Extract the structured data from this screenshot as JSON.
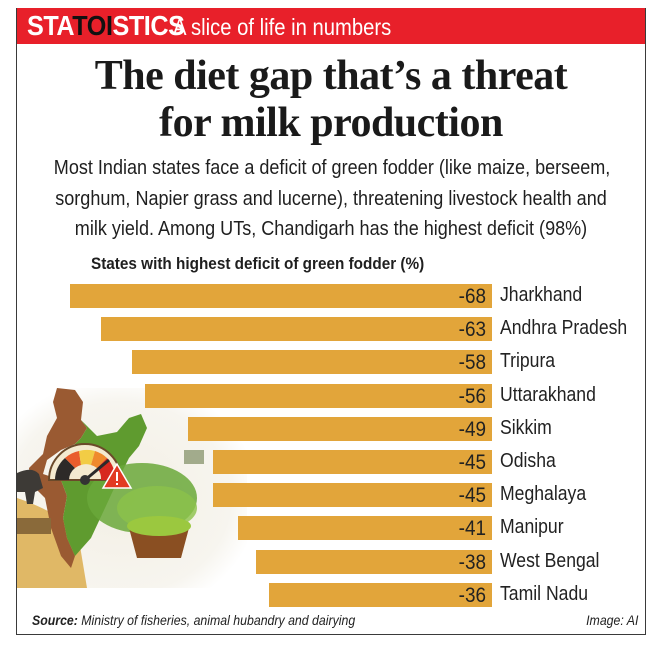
{
  "banner": {
    "brand_pre": "STA",
    "brand_toi": "TOI",
    "brand_post": "STICS",
    "tagline": "A slice of life in numbers"
  },
  "headline": {
    "line1": "The diet gap that’s a threat",
    "line2": "for milk production"
  },
  "subtitle": {
    "line1": "Most Indian states face a deficit of green fodder (like maize, berseem,",
    "line2": "sorghum, Napier grass and lucerne), threatening livestock health and",
    "line3": "milk yield.  Among UTs, Chandigarh has the highest deficit (98%)"
  },
  "footer": {
    "source_label": "Source:",
    "source_text": " Ministry of fisheries, animal hubandry and dairying",
    "credit": "Image: AI"
  },
  "colors": {
    "banner": "#e8202a",
    "bar": "#e2a53a"
  },
  "chart_data": {
    "type": "bar",
    "orientation": "horizontal",
    "title": "States with highest deficit of green fodder (%)",
    "xlabel": "",
    "ylabel": "",
    "categories": [
      "Jharkhand",
      "Andhra Pradesh",
      "Tripura",
      "Uttarakhand",
      "Sikkim",
      "Odisha",
      "Meghalaya",
      "Manipur",
      "West Bengal",
      "Tamil Nadu"
    ],
    "values": [
      -68,
      -63,
      -58,
      -56,
      -49,
      -45,
      -45,
      -41,
      -38,
      -36
    ],
    "value_labels": [
      "-68",
      "-63",
      "-58",
      "-56",
      "-49",
      "-45",
      "-45",
      "-41",
      "-38",
      "-36"
    ],
    "xlim": [
      -68,
      0
    ],
    "grid": false,
    "legend": "none"
  }
}
